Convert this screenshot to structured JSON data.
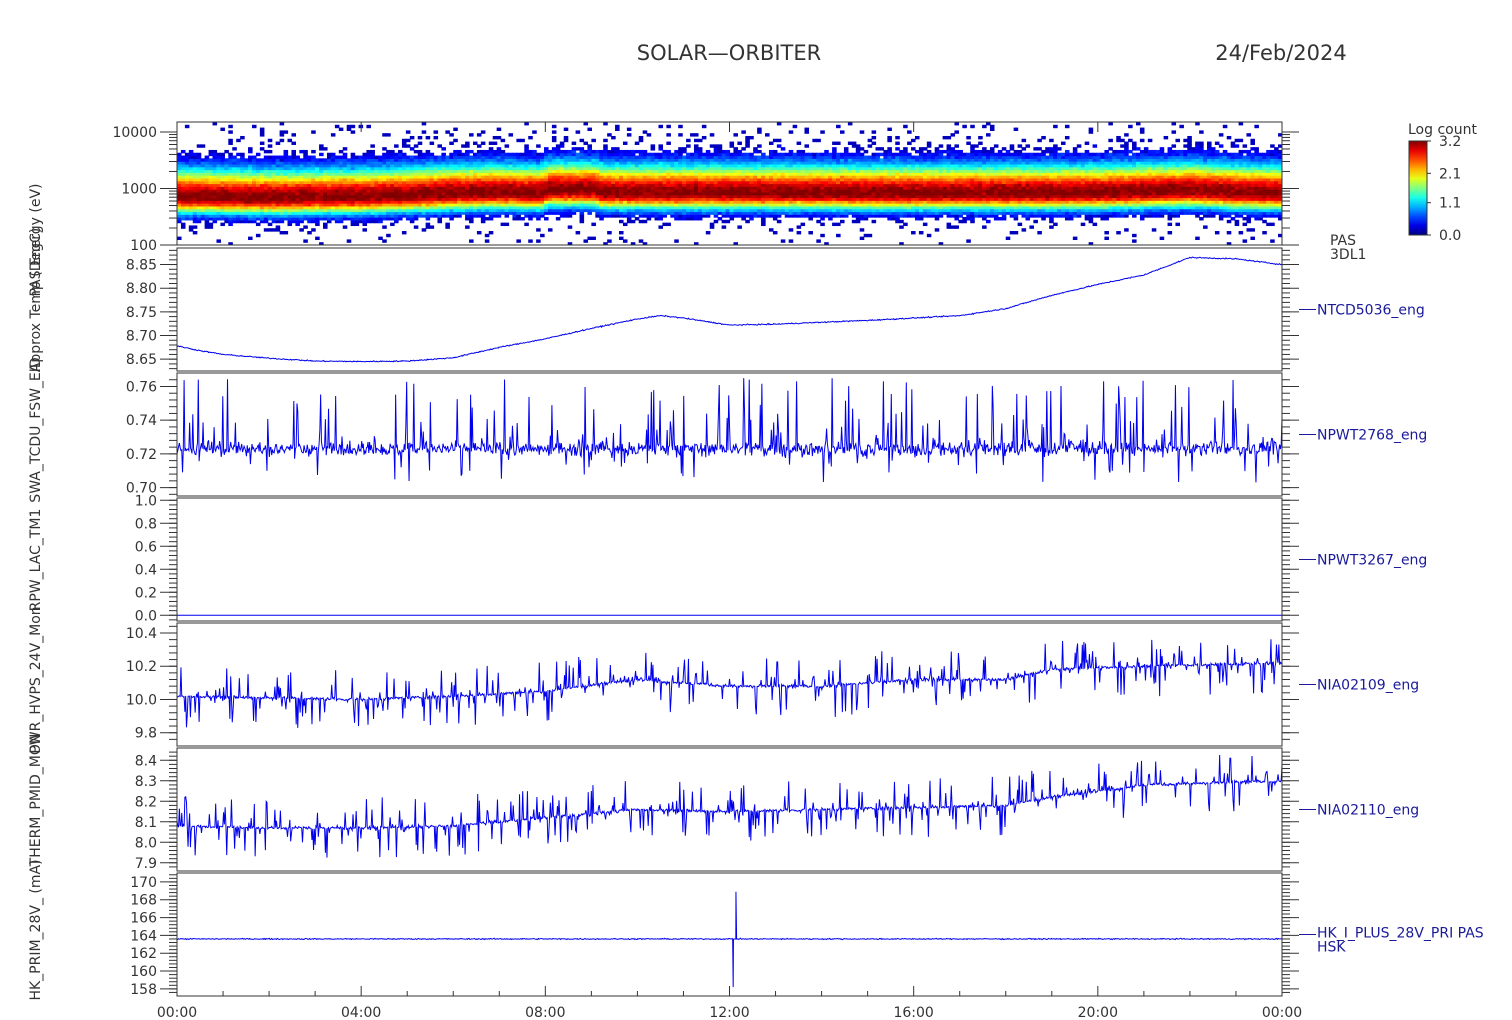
{
  "header": {
    "mission": "SOLAR—ORBITER",
    "date": "24/Feb/2024"
  },
  "colorbar": {
    "title": "Log count",
    "ticks": [
      "3.2",
      "2.1",
      "1.1",
      "0.0"
    ],
    "range": [
      0.0,
      3.2
    ]
  },
  "colors": {
    "trace": "#0000ee",
    "axis": "#333333",
    "label": "#1a1a9a"
  },
  "y_axis_titles_overlapping": [
    "PAS Energy (eV)",
    "Approx Temp (DegC)",
    "SWA_TCDU_FSW_EID",
    "RPW_LAC_TM1",
    "PWR_HVPS_24V_Mon",
    "THERM_PMID_MON",
    "HK_PRIM_28V_ (mA)"
  ],
  "chart_data": {
    "type": "line",
    "x_label": "",
    "x_ticks": [
      "00:00",
      "04:00",
      "08:00",
      "12:00",
      "16:00",
      "20:00",
      "00:00"
    ],
    "x_range_hours": [
      0,
      24
    ],
    "panels": [
      {
        "id": "pas-spectrogram",
        "type": "heatmap",
        "y_scale": "log",
        "y_range": [
          100,
          15000
        ],
        "y_ticks": [
          "10000",
          "1000",
          "100"
        ],
        "right_label": [
          "PAS",
          "3DL1"
        ],
        "peak_energy_eV": [
          [
            0,
            720
          ],
          [
            2,
            690
          ],
          [
            4,
            720
          ],
          [
            5,
            760
          ],
          [
            6,
            820
          ],
          [
            7,
            860
          ],
          [
            7.9,
            820
          ],
          [
            8.1,
            950
          ],
          [
            9.1,
            950
          ],
          [
            9.2,
            850
          ],
          [
            12,
            850
          ],
          [
            16,
            830
          ],
          [
            20,
            840
          ],
          [
            22,
            930
          ],
          [
            23,
            850
          ],
          [
            24,
            820
          ]
        ]
      },
      {
        "id": "approx-temp",
        "type": "line",
        "y_range": [
          8.625,
          8.885
        ],
        "y_ticks": [
          "8.85",
          "8.80",
          "8.75",
          "8.70",
          "8.65"
        ],
        "right_label": [
          "NTCD5036_eng"
        ],
        "points": [
          [
            0,
            8.678
          ],
          [
            0.5,
            8.668
          ],
          [
            1,
            8.66
          ],
          [
            2,
            8.652
          ],
          [
            3,
            8.646
          ],
          [
            4,
            8.645
          ],
          [
            5,
            8.646
          ],
          [
            6,
            8.653
          ],
          [
            7,
            8.675
          ],
          [
            8,
            8.693
          ],
          [
            9,
            8.715
          ],
          [
            10,
            8.735
          ],
          [
            10.5,
            8.742
          ],
          [
            11,
            8.737
          ],
          [
            12,
            8.722
          ],
          [
            13,
            8.724
          ],
          [
            14,
            8.728
          ],
          [
            15,
            8.732
          ],
          [
            16,
            8.737
          ],
          [
            17,
            8.742
          ],
          [
            18,
            8.757
          ],
          [
            19,
            8.785
          ],
          [
            20,
            8.808
          ],
          [
            21,
            8.828
          ],
          [
            22,
            8.865
          ],
          [
            23,
            8.862
          ],
          [
            24,
            8.85
          ]
        ]
      },
      {
        "id": "tcdu-fsw",
        "type": "line",
        "y_range": [
          0.695,
          0.768
        ],
        "y_ticks": [
          "0.76",
          "0.74",
          "0.72",
          "0.70"
        ],
        "right_label": [
          "NPWT2768_eng"
        ],
        "baseline": 0.723,
        "noise_upper": 0.765,
        "noise_lower": 0.703
      },
      {
        "id": "rpw-lac",
        "type": "line",
        "y_range": [
          -0.05,
          1.02
        ],
        "y_ticks": [
          "1.0",
          "0.8",
          "0.6",
          "0.4",
          "0.2",
          "0.0"
        ],
        "right_label": [
          "NPWT3267_eng"
        ],
        "constant_value": 0.0
      },
      {
        "id": "hvps-24v",
        "type": "line",
        "y_range": [
          9.72,
          10.46
        ],
        "y_ticks": [
          "10.4",
          "10.2",
          "10.0",
          "9.8"
        ],
        "right_label": [
          "NIA02109_eng"
        ],
        "level_points": [
          [
            0,
            10.02
          ],
          [
            4,
            10.0
          ],
          [
            6,
            10.02
          ],
          [
            8,
            10.05
          ],
          [
            10,
            10.12
          ],
          [
            12,
            10.08
          ],
          [
            14,
            10.08
          ],
          [
            16,
            10.12
          ],
          [
            18,
            10.12
          ],
          [
            19,
            10.18
          ],
          [
            21,
            10.2
          ],
          [
            24,
            10.22
          ]
        ]
      },
      {
        "id": "therm-pmid",
        "type": "line",
        "y_range": [
          7.86,
          8.46
        ],
        "y_ticks": [
          "8.4",
          "8.3",
          "8.2",
          "8.1",
          "8.0",
          "7.9"
        ],
        "right_label": [
          "NIA02110_eng"
        ],
        "level_points": [
          [
            0,
            8.08
          ],
          [
            2,
            8.07
          ],
          [
            4,
            8.07
          ],
          [
            6,
            8.08
          ],
          [
            8,
            8.12
          ],
          [
            10,
            8.16
          ],
          [
            12,
            8.15
          ],
          [
            14,
            8.16
          ],
          [
            16,
            8.17
          ],
          [
            18,
            8.18
          ],
          [
            19,
            8.22
          ],
          [
            21,
            8.28
          ],
          [
            24,
            8.3
          ]
        ]
      },
      {
        "id": "hk-28v",
        "type": "line",
        "y_range": [
          157.2,
          171.0
        ],
        "y_ticks": [
          "170",
          "168",
          "166",
          "164",
          "162",
          "160",
          "158"
        ],
        "right_label": [
          "HK_I_PLUS_28V_PRI PAS",
          "HSK"
        ],
        "baseline": 163.6,
        "spike": {
          "time_h": 12.05,
          "max": 168.9,
          "min": 158.2
        }
      }
    ]
  }
}
